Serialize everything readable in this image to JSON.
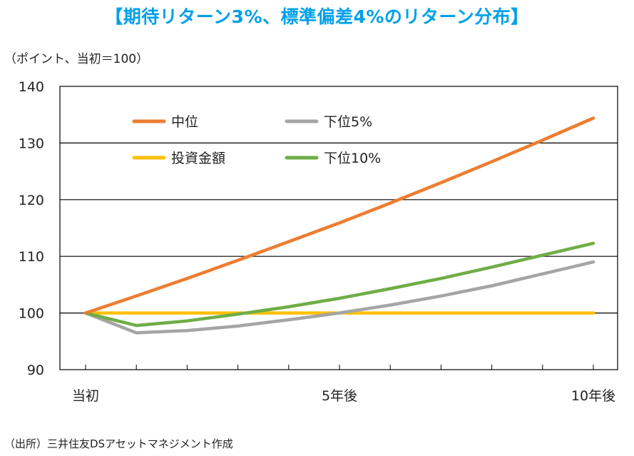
{
  "title": "【期待リターン3%、標準偏差4%のリターン分布】",
  "unit_label": "（ポイント、当初＝100）",
  "source": "（出所）三井住友DSアセットマネジメント作成",
  "chart_data": {
    "type": "line",
    "title": "期待リターン3%、標準偏差4%のリターン分布",
    "ylabel": "ポイント、当初＝100",
    "xlabel": "",
    "ylim": [
      90,
      140
    ],
    "yticks": [
      90,
      100,
      110,
      120,
      130,
      140
    ],
    "x": [
      0,
      1,
      2,
      3,
      4,
      5,
      6,
      7,
      8,
      9,
      10
    ],
    "xtick_labels": [
      {
        "x": 0,
        "label": "当初"
      },
      {
        "x": 5,
        "label": "5年後"
      },
      {
        "x": 10,
        "label": "10年後"
      }
    ],
    "grid": true,
    "legend_position": "top-left",
    "series": [
      {
        "name": "中位",
        "color": "#ed7d31",
        "values": [
          100,
          103.0,
          106.1,
          109.3,
          112.6,
          115.9,
          119.4,
          123.0,
          126.7,
          130.5,
          134.4
        ]
      },
      {
        "name": "下位5%",
        "color": "#a5a5a5",
        "values": [
          100,
          96.5,
          96.9,
          97.7,
          98.8,
          100.0,
          101.4,
          103.0,
          104.8,
          106.9,
          109.0
        ]
      },
      {
        "name": "投資金額",
        "color": "#ffc000",
        "values": [
          100,
          100,
          100,
          100,
          100,
          100,
          100,
          100,
          100,
          100,
          100
        ]
      },
      {
        "name": "下位10%",
        "color": "#70ad47",
        "values": [
          100,
          97.8,
          98.6,
          99.8,
          101.1,
          102.6,
          104.3,
          106.1,
          108.1,
          110.2,
          112.3
        ]
      }
    ]
  }
}
